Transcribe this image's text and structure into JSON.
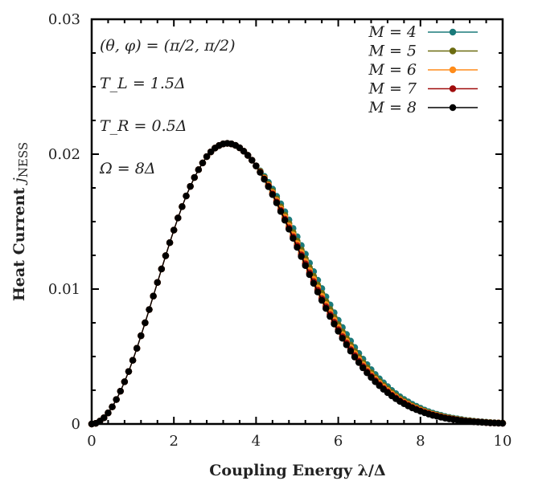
{
  "chart_data": {
    "type": "line",
    "xlabel": "Coupling Energy λ/Δ",
    "ylabel": "Heat Current j_NESS",
    "ylabel_main": "Heat Current",
    "ylabel_symbol": "j",
    "ylabel_sub": "NESS",
    "xlim": [
      0,
      10
    ],
    "ylim": [
      0,
      0.03
    ],
    "x_ticks": [
      "0",
      "2",
      "4",
      "6",
      "8",
      "10"
    ],
    "y_ticks": [
      "0",
      "0.01",
      "0.02",
      "0.03"
    ],
    "grid": false,
    "legend_position": "top-right",
    "annotations": [
      "(θ, φ) = (π/2, π/2)",
      "T_L = 1.5Δ",
      "T_R = 0.5Δ",
      "Ω = 8Δ"
    ],
    "annotation_parts": [
      {
        "main": "(θ, φ) = (",
        "frac": "π/2",
        "sep": ", ",
        "frac2": "π/2",
        "end": ")"
      },
      {
        "main": "T",
        "sub": "L",
        "rest": " = 1.5Δ"
      },
      {
        "main": "T",
        "sub": "R",
        "rest": " = 0.5Δ"
      },
      {
        "main": "Ω = 8Δ"
      }
    ],
    "x": [
      0,
      0.1,
      0.2,
      0.3,
      0.4,
      0.5,
      0.6,
      0.7,
      0.8,
      0.9,
      1,
      1.1,
      1.2,
      1.3,
      1.4,
      1.5,
      1.6,
      1.7,
      1.8,
      1.9,
      2,
      2.1,
      2.2,
      2.3,
      2.4,
      2.5,
      2.6,
      2.7,
      2.8,
      2.9,
      3,
      3.1,
      3.2,
      3.3,
      3.4,
      3.5,
      3.6,
      3.7,
      3.8,
      3.9,
      4,
      4.1,
      4.2,
      4.3,
      4.4,
      4.5,
      4.6,
      4.7,
      4.8,
      4.9,
      5,
      5.1,
      5.2,
      5.3,
      5.4,
      5.5,
      5.6,
      5.7,
      5.8,
      5.9,
      6,
      6.1,
      6.2,
      6.3,
      6.4,
      6.5,
      6.6,
      6.7,
      6.8,
      6.9,
      7,
      7.1,
      7.2,
      7.3,
      7.4,
      7.5,
      7.6,
      7.7,
      7.8,
      7.9,
      8,
      8.1,
      8.2,
      8.3,
      8.4,
      8.5,
      8.6,
      8.7,
      8.8,
      8.9,
      9,
      9.1,
      9.2,
      9.3,
      9.4,
      9.5,
      9.6,
      9.7,
      9.8,
      9.9,
      10
    ],
    "common_head": [
      0,
      5e-05,
      0.00021,
      0.00046,
      0.00082,
      0.00127,
      0.00181,
      0.00243,
      0.00313,
      0.00389,
      0.00472,
      0.00561,
      0.00654,
      0.0075,
      0.00848,
      0.00948,
      0.01049,
      0.01149,
      0.01247,
      0.01344,
      0.01437,
      0.01527,
      0.01611,
      0.0169,
      0.01761,
      0.01827,
      0.01885,
      0.01935,
      0.01982,
      0.02017,
      0.02045,
      0.02064,
      0.02076,
      0.0208,
      0.02076,
      0.02065,
      0.02047,
      0.02022,
      0.01991,
      0.01955,
      0.01913
    ],
    "series": [
      {
        "name": "M = 4",
        "label": "4",
        "color": "#1a7a7a",
        "tail": [
          0.01876,
          0.01836,
          0.01791,
          0.01741,
          0.01688,
          0.01632,
          0.01573,
          0.01513,
          0.0145,
          0.01388,
          0.01323,
          0.01259,
          0.01193,
          0.0113,
          0.01066,
          0.01004,
          0.00943,
          0.00883,
          0.00825,
          0.00769,
          0.00715,
          0.00664,
          0.00615,
          0.00567,
          0.00523,
          0.00481,
          0.0044,
          0.00403,
          0.00367,
          0.00335,
          0.00305,
          0.00277,
          0.00249,
          0.00225,
          0.00202,
          0.00182,
          0.00164,
          0.00146,
          0.00131,
          0.00117,
          0.00103,
          0.00091,
          0.00081,
          0.00072,
          0.00064,
          0.00055,
          0.00049,
          0.00043,
          0.00038,
          0.00033,
          0.00027,
          0.00025,
          0.00021,
          0.00018,
          0.00016,
          0.00013,
          0.00011,
          9e-05,
          8e-05,
          7e-05
        ]
      },
      {
        "name": "M = 5",
        "label": "5",
        "color": "#6b6b10",
        "tail": [
          0.01872,
          0.01827,
          0.01778,
          0.01725,
          0.01668,
          0.01609,
          0.01548,
          0.01485,
          0.0142,
          0.01356,
          0.0129,
          0.01225,
          0.01159,
          0.01095,
          0.01031,
          0.00969,
          0.00908,
          0.00849,
          0.00791,
          0.00736,
          0.00683,
          0.00633,
          0.00585,
          0.00539,
          0.00496,
          0.00455,
          0.00416,
          0.0038,
          0.00345,
          0.00315,
          0.00286,
          0.00259,
          0.00233,
          0.0021,
          0.00188,
          0.00169,
          0.00152,
          0.00135,
          0.00121,
          0.00108,
          0.00095,
          0.00084,
          0.00074,
          0.00066,
          0.00058,
          0.0005,
          0.00045,
          0.00039,
          0.00034,
          0.0003,
          0.00025,
          0.00023,
          0.00019,
          0.00016,
          0.00014,
          0.00012,
          0.0001,
          8e-05,
          7e-05,
          6e-05
        ]
      },
      {
        "name": "M = 6",
        "label": "6",
        "color": "#ff8c1a",
        "tail": [
          0.01869,
          0.01822,
          0.0177,
          0.01714,
          0.01656,
          0.01595,
          0.01532,
          0.01468,
          0.01402,
          0.01337,
          0.0127,
          0.01204,
          0.01137,
          0.01073,
          0.01009,
          0.00947,
          0.00886,
          0.00827,
          0.0077,
          0.00716,
          0.00663,
          0.00614,
          0.00566,
          0.00521,
          0.00479,
          0.00439,
          0.004,
          0.00365,
          0.00332,
          0.00302,
          0.00274,
          0.00248,
          0.00222,
          0.002,
          0.00179,
          0.00161,
          0.00145,
          0.00128,
          0.00115,
          0.00102,
          0.0009,
          0.00079,
          0.0007,
          0.00062,
          0.00055,
          0.00047,
          0.00042,
          0.00037,
          0.00032,
          0.00028,
          0.00023,
          0.00021,
          0.00018,
          0.00015,
          0.00013,
          0.00011,
          9e-05,
          8e-05,
          7e-05,
          6e-05
        ]
      },
      {
        "name": "M = 7",
        "label": "7",
        "color": "#a00d0d",
        "tail": [
          0.01867,
          0.01817,
          0.01764,
          0.01706,
          0.01646,
          0.01584,
          0.01519,
          0.01454,
          0.01387,
          0.01321,
          0.01253,
          0.01187,
          0.0112,
          0.01055,
          0.00991,
          0.00929,
          0.00869,
          0.0081,
          0.00754,
          0.00699,
          0.00647,
          0.00599,
          0.00551,
          0.00507,
          0.00465,
          0.00426,
          0.00388,
          0.00354,
          0.00321,
          0.00292,
          0.00264,
          0.00239,
          0.00214,
          0.00193,
          0.00172,
          0.00155,
          0.00139,
          0.00123,
          0.0011,
          0.00097,
          0.00086,
          0.00076,
          0.00067,
          0.00059,
          0.00052,
          0.00045,
          0.0004,
          0.00035,
          0.0003,
          0.00026,
          0.00022,
          0.0002,
          0.00017,
          0.00015,
          0.00013,
          0.0001,
          8e-05,
          7e-05,
          6e-05,
          5e-05
        ]
      },
      {
        "name": "M = 8",
        "label": "8",
        "color": "#000000",
        "tail": [
          0.01865,
          0.01814,
          0.01759,
          0.017,
          0.01639,
          0.01575,
          0.0151,
          0.01444,
          0.01376,
          0.01309,
          0.01241,
          0.01174,
          0.01107,
          0.01042,
          0.00978,
          0.00916,
          0.00856,
          0.00797,
          0.00741,
          0.00687,
          0.00635,
          0.00587,
          0.0054,
          0.00496,
          0.00455,
          0.00416,
          0.00379,
          0.00345,
          0.00313,
          0.00284,
          0.00257,
          0.00232,
          0.00208,
          0.00187,
          0.00167,
          0.0015,
          0.00134,
          0.00119,
          0.00106,
          0.00094,
          0.00083,
          0.00073,
          0.00064,
          0.00057,
          0.0005,
          0.00043,
          0.00038,
          0.00033,
          0.00029,
          0.00025,
          0.00021,
          0.00019,
          0.00016,
          0.00014,
          0.00012,
          0.0001,
          8e-05,
          7e-05,
          6e-05,
          5e-05
        ]
      }
    ]
  }
}
